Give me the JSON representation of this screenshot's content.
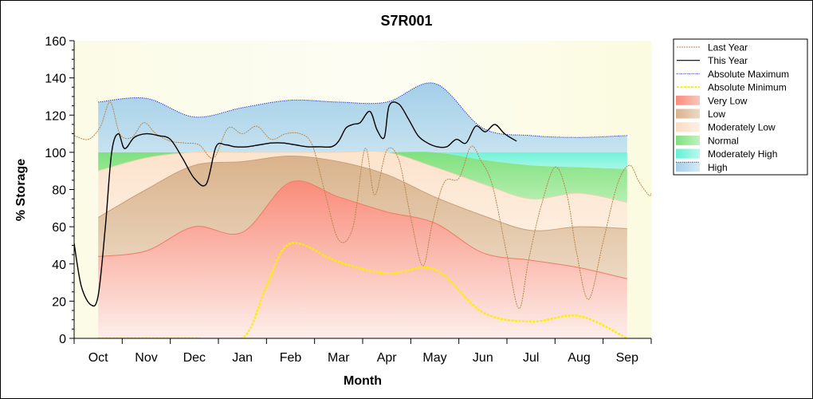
{
  "chart_data": {
    "type": "area",
    "title": "S7R001",
    "xlabel": "Month",
    "ylabel": "% Storage",
    "ylim": [
      0,
      160
    ],
    "y_ticks": [
      "0",
      "20",
      "40",
      "60",
      "80",
      "100",
      "120",
      "140",
      "160"
    ],
    "x_ticks": [
      {
        "label": "Oct",
        "x": 0.5
      },
      {
        "label": "Nov",
        "x": 1.5
      },
      {
        "label": "Dec",
        "x": 2.5
      },
      {
        "label": "Jan",
        "x": 3.5
      },
      {
        "label": "Feb",
        "x": 4.5
      },
      {
        "label": "Mar",
        "x": 5.5
      },
      {
        "label": "Apr",
        "x": 6.5
      },
      {
        "label": "May",
        "x": 7.5
      },
      {
        "label": "Jun",
        "x": 8.5
      },
      {
        "label": "Jul",
        "x": 9.5
      },
      {
        "label": "Aug",
        "x": 10.5
      },
      {
        "label": "Sep",
        "x": 11.5
      }
    ],
    "xlim": [
      0,
      12
    ],
    "legend_position": "right",
    "grid": false,
    "colors": {
      "very_low": "#fa8c7a",
      "low": "#d9b38c",
      "moderately_low": "#fbe0c8",
      "normal": "#8ce68c",
      "moderately_high": "#7ff5dd",
      "high": "#a9d4ec",
      "last_year": "#b8864b",
      "this_year": "#000000",
      "abs_max": "#0000cc",
      "abs_min": "#ffee00"
    },
    "bands_x": [
      0.5,
      1.5,
      2.5,
      3.5,
      4.5,
      5.5,
      6.5,
      7.5,
      8.5,
      9.5,
      10.5,
      11.5
    ],
    "band_lines": {
      "very_low_top": [
        44,
        47,
        60,
        57,
        84,
        76,
        68,
        62,
        46,
        42,
        38,
        32
      ],
      "low_top": [
        65,
        80,
        93,
        95,
        98,
        95,
        88,
        76,
        66,
        58,
        60,
        59
      ],
      "moderately_low_top": [
        90,
        97,
        100,
        100,
        100,
        100,
        100,
        92,
        83,
        75,
        78,
        73
      ],
      "normal_top": [
        100,
        100,
        100,
        100,
        100,
        100,
        100,
        100,
        96,
        93,
        92,
        91
      ],
      "moderately_high_top": [
        100,
        100,
        100,
        100,
        100,
        100,
        100,
        100,
        100,
        100,
        100,
        100
      ]
    },
    "series": [
      {
        "name": "Last Year",
        "x": [
          0.0,
          0.3,
          0.55,
          0.75,
          0.95,
          1.2,
          1.45,
          1.7,
          2.0,
          2.3,
          2.6,
          2.9,
          3.2,
          3.5,
          3.8,
          4.1,
          4.4,
          4.7,
          4.95,
          5.2,
          5.5,
          5.8,
          6.05,
          6.25,
          6.5,
          6.75,
          7.0,
          7.25,
          7.45,
          7.7,
          8.0,
          8.25,
          8.45,
          8.7,
          9.0,
          9.25,
          9.45,
          9.7,
          10.0,
          10.25,
          10.45,
          10.7,
          11.0,
          11.3,
          11.55,
          11.75,
          11.95,
          12.0
        ],
        "values": [
          109,
          107,
          114,
          127,
          110,
          108,
          116,
          110,
          106,
          105,
          104,
          97,
          113,
          110,
          114,
          107,
          110,
          110,
          104,
          80,
          53,
          60,
          102,
          77,
          101,
          96,
          65,
          39,
          62,
          84,
          86,
          103,
          96,
          82,
          45,
          16,
          42,
          70,
          92,
          77,
          46,
          21,
          52,
          83,
          93,
          84,
          77,
          78
        ]
      },
      {
        "name": "This Year",
        "x": [
          0.0,
          0.15,
          0.35,
          0.5,
          0.65,
          0.78,
          0.92,
          1.05,
          1.25,
          1.5,
          1.75,
          2.0,
          2.25,
          2.5,
          2.75,
          2.95,
          3.15,
          3.35,
          3.6,
          3.85,
          4.1,
          4.35,
          4.6,
          4.85,
          5.1,
          5.35,
          5.5,
          5.65,
          5.8,
          5.95,
          6.15,
          6.3,
          6.45,
          6.55,
          6.75,
          6.95,
          7.15,
          7.35,
          7.55,
          7.75,
          7.95,
          8.15,
          8.35,
          8.55,
          8.75,
          8.95,
          9.2
        ],
        "values": [
          51,
          28,
          18,
          23,
          60,
          100,
          110,
          102,
          108,
          110,
          109,
          107,
          97,
          86,
          83,
          103,
          104,
          103,
          103,
          104,
          105,
          105,
          104,
          103,
          103,
          103,
          106,
          113,
          115,
          116,
          122,
          112,
          108,
          125,
          126,
          118,
          109,
          105,
          103,
          103,
          107,
          105,
          114,
          111,
          115,
          110,
          106
        ]
      },
      {
        "name": "Absolute Maximum",
        "x": [
          0.5,
          1.5,
          2.5,
          3.5,
          4.5,
          5.5,
          6.5,
          7.5,
          8.5,
          9.5,
          10.5,
          11.5
        ],
        "values": [
          127,
          129,
          119,
          124,
          128,
          127,
          127,
          137,
          113,
          109,
          108,
          109
        ]
      },
      {
        "name": "Absolute Minimum",
        "x": [
          0.5,
          1.5,
          2.5,
          3.5,
          4.0,
          4.5,
          5.5,
          6.5,
          7.5,
          8.5,
          9.5,
          10.5,
          11.5
        ],
        "values": [
          0,
          0,
          0,
          0,
          28,
          51,
          41,
          35,
          37,
          14,
          9,
          12,
          0
        ]
      }
    ],
    "legend": [
      {
        "label": "Last Year",
        "swatch": "dashed-line",
        "color": "#b8864b"
      },
      {
        "label": "This Year",
        "swatch": "line",
        "color": "#000000"
      },
      {
        "label": "Absolute Maximum",
        "swatch": "dotted-line",
        "color": "#0000cc"
      },
      {
        "label": "Absolute Minimum",
        "swatch": "dashed-line",
        "color": "#ffee00"
      },
      {
        "label": "Very Low",
        "swatch": "fill",
        "color": "#fa8c7a"
      },
      {
        "label": "Low",
        "swatch": "fill",
        "color": "#d9b38c"
      },
      {
        "label": "Moderately Low",
        "swatch": "fill",
        "color": "#fbe0c8"
      },
      {
        "label": "Normal",
        "swatch": "fill",
        "color": "#8ce68c"
      },
      {
        "label": "Moderately High",
        "swatch": "fill",
        "color": "#7ff5dd"
      },
      {
        "label": "High",
        "swatch": "fill",
        "color": "#a9d4ec"
      }
    ]
  }
}
